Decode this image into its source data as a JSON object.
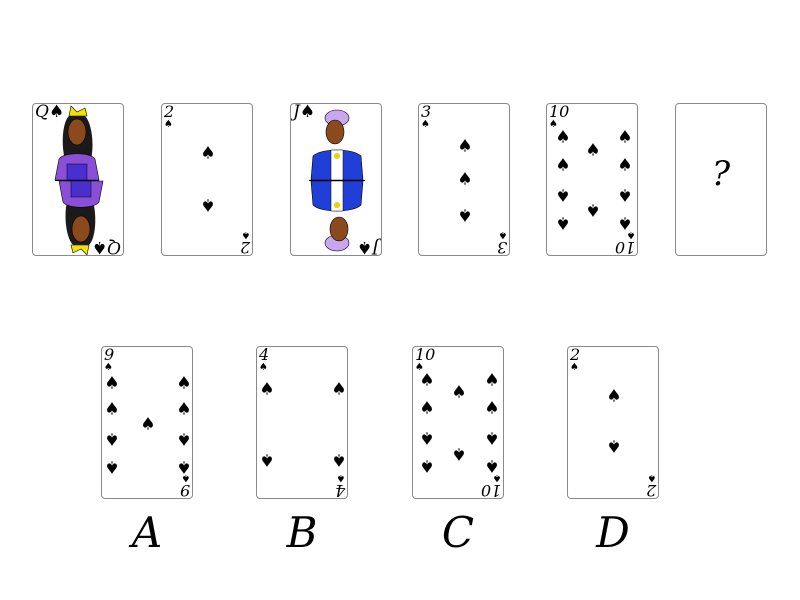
{
  "sequence": [
    {
      "rank": "Q",
      "suit": "♠",
      "kind": "face-queen"
    },
    {
      "rank": "2",
      "suit": "♠",
      "kind": "pips"
    },
    {
      "rank": "J",
      "suit": "♠",
      "kind": "face-jack"
    },
    {
      "rank": "3",
      "suit": "♠",
      "kind": "pips"
    },
    {
      "rank": "10",
      "suit": "♠",
      "kind": "pips"
    },
    {
      "rank": "?",
      "suit": "",
      "kind": "unknown"
    }
  ],
  "options": [
    {
      "label": "A",
      "rank": "9",
      "suit": "♠"
    },
    {
      "label": "B",
      "rank": "4",
      "suit": "♠"
    },
    {
      "label": "C",
      "rank": "10",
      "suit": "♠"
    },
    {
      "label": "D",
      "rank": "2",
      "suit": "♠"
    }
  ],
  "colors": {
    "card_border": "#8a8a8a",
    "queen_dress": "#8a4fd6",
    "jack_coat": "#1f3fd6",
    "crown": "#f2e200",
    "skin": "#8b4a1e"
  }
}
